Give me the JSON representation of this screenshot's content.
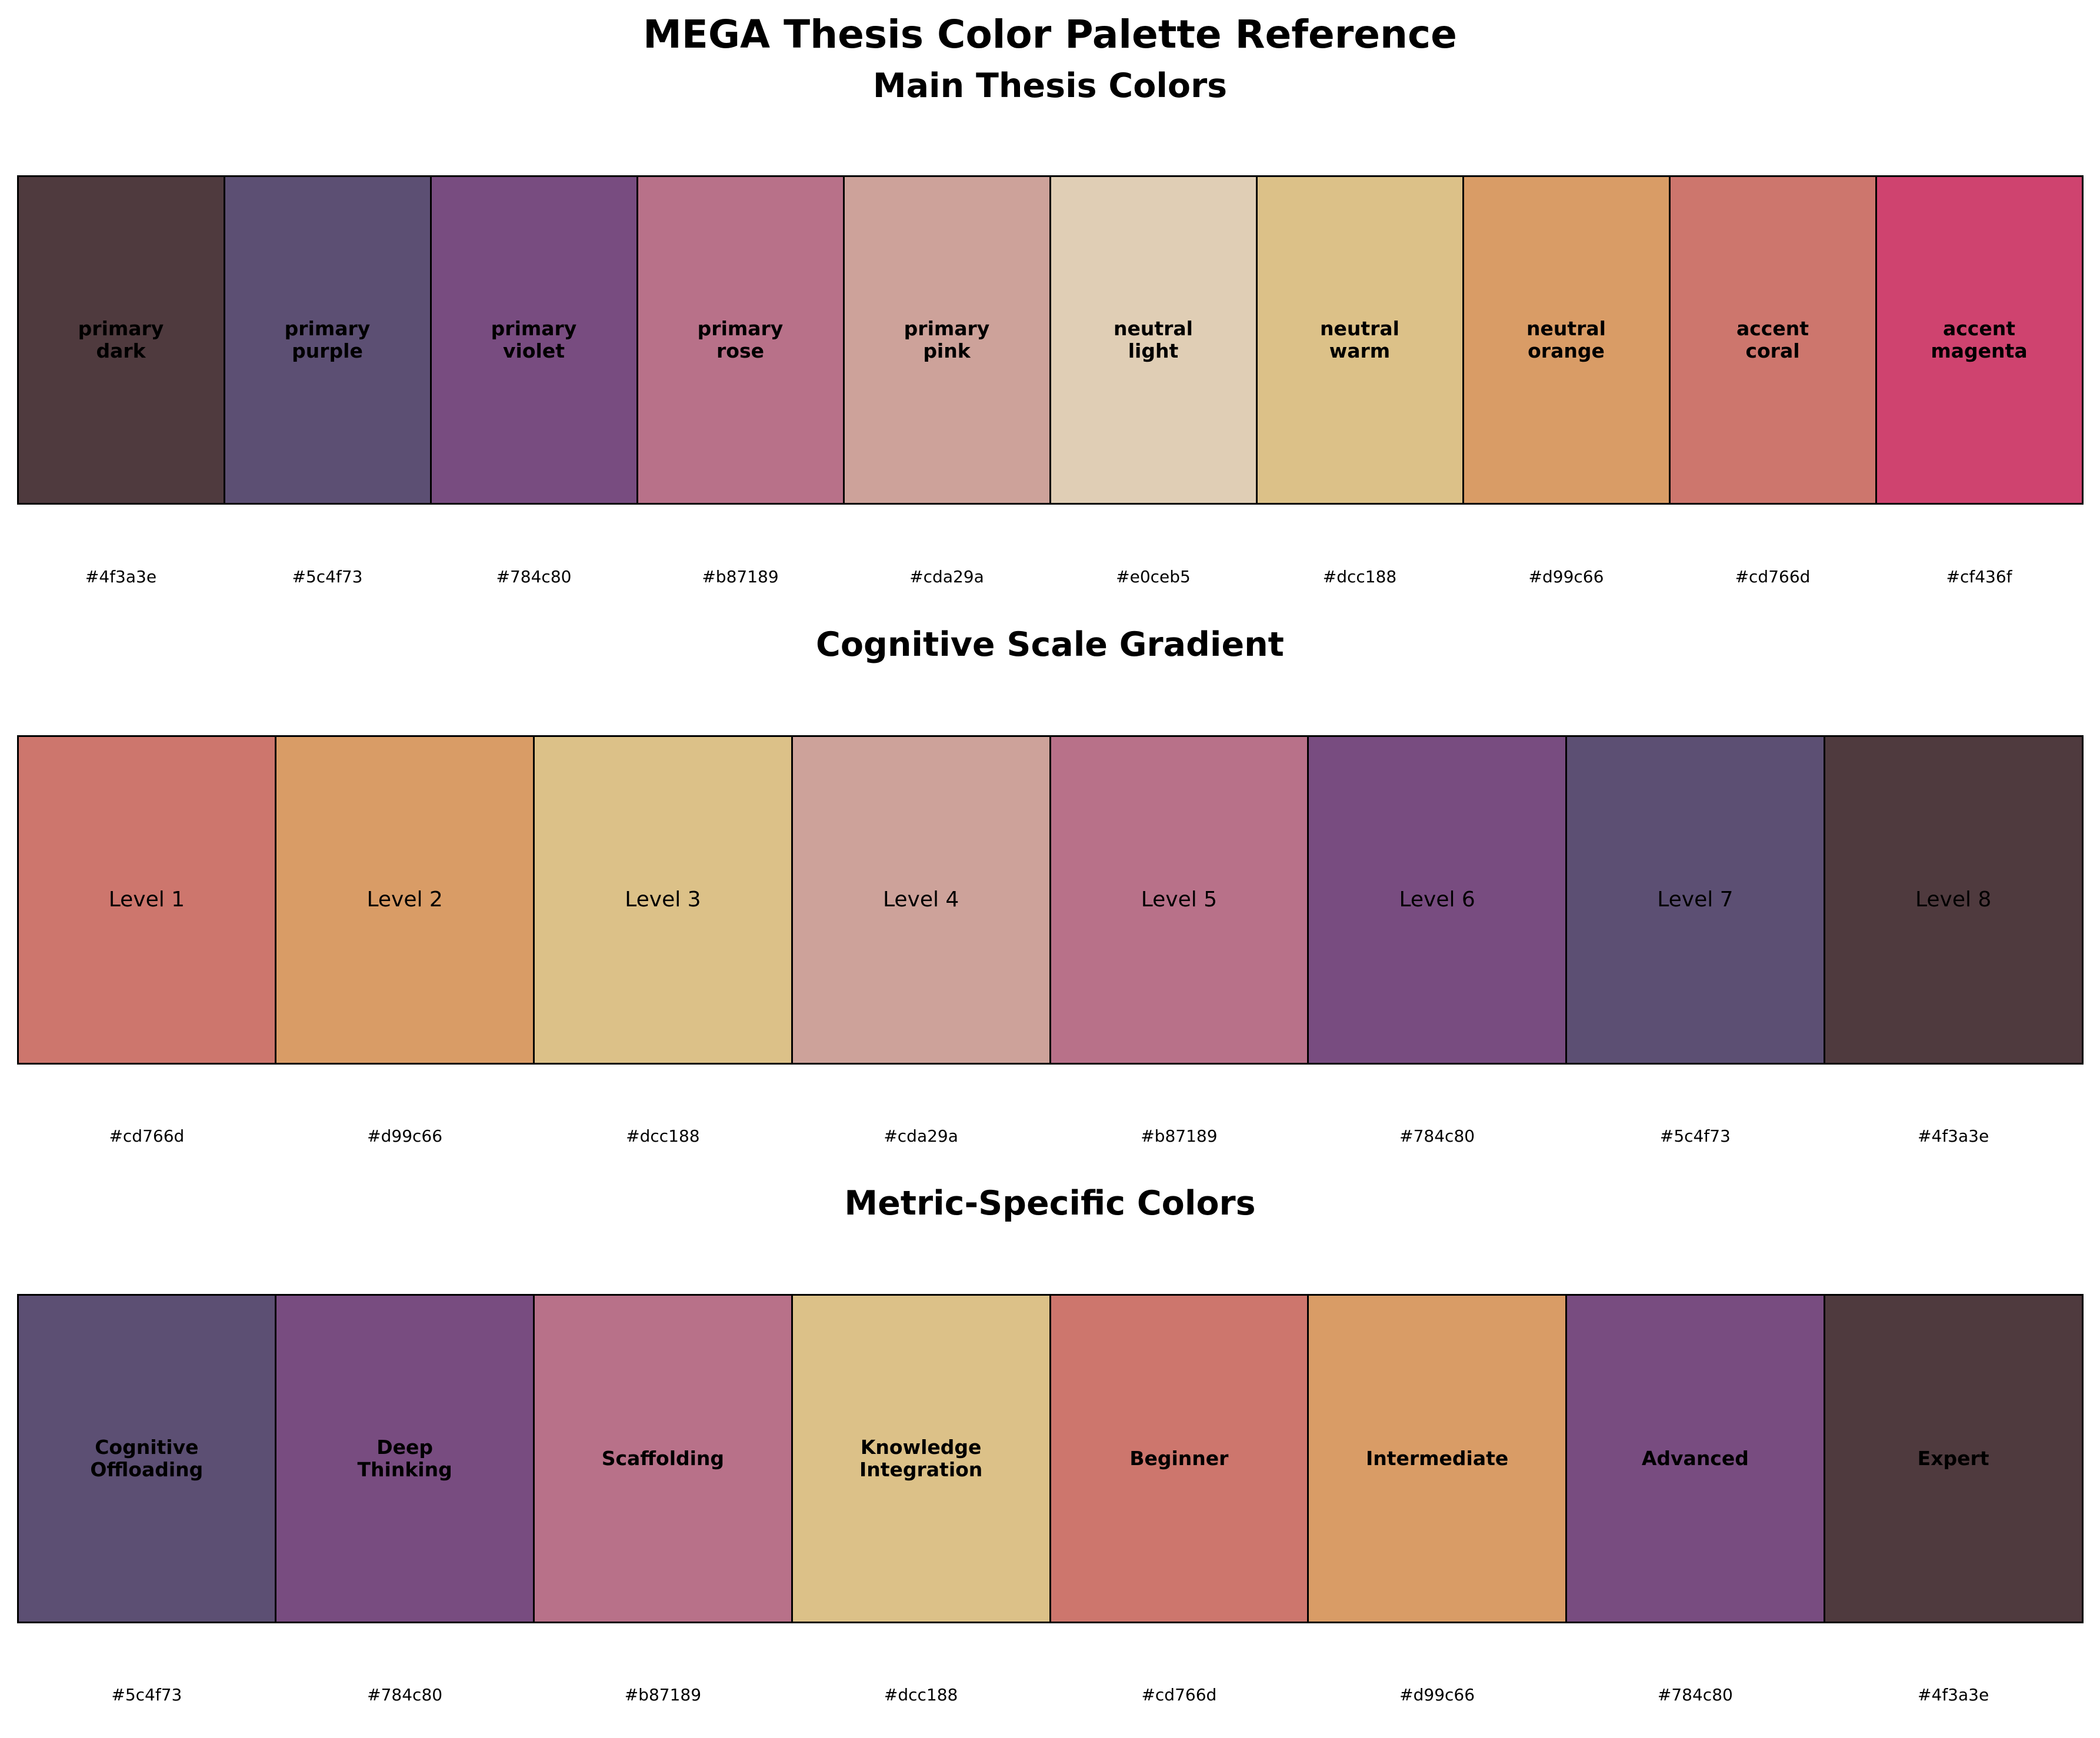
{
  "title": "MEGA Thesis Color Palette Reference",
  "chart_data": [
    {
      "type": "table",
      "title": "Main Thesis Colors",
      "swatches": [
        {
          "label": "primary\ndark",
          "hex": "#4f3a3e",
          "color": "#4f3a3e"
        },
        {
          "label": "primary\npurple",
          "hex": "#5c4f73",
          "color": "#5c4f73"
        },
        {
          "label": "primary\nviolet",
          "hex": "#784c80",
          "color": "#784c80"
        },
        {
          "label": "primary\nrose",
          "hex": "#b87189",
          "color": "#b87189"
        },
        {
          "label": "primary\npink",
          "hex": "#cda29a",
          "color": "#cda29a"
        },
        {
          "label": "neutral\nlight",
          "hex": "#e0ceb5",
          "color": "#e0ceb5"
        },
        {
          "label": "neutral\nwarm",
          "hex": "#dcc188",
          "color": "#dcc188"
        },
        {
          "label": "neutral\norange",
          "hex": "#d99c66",
          "color": "#d99c66"
        },
        {
          "label": "accent\ncoral",
          "hex": "#cd766d",
          "color": "#cd766d"
        },
        {
          "label": "accent\nmagenta",
          "hex": "#cf436f",
          "color": "#cf436f"
        }
      ]
    },
    {
      "type": "table",
      "title": "Cognitive Scale Gradient",
      "swatches": [
        {
          "label": "Level 1",
          "hex": "#cd766d",
          "color": "#cd766d"
        },
        {
          "label": "Level 2",
          "hex": "#d99c66",
          "color": "#d99c66"
        },
        {
          "label": "Level 3",
          "hex": "#dcc188",
          "color": "#dcc188"
        },
        {
          "label": "Level 4",
          "hex": "#cda29a",
          "color": "#cda29a"
        },
        {
          "label": "Level 5",
          "hex": "#b87189",
          "color": "#b87189"
        },
        {
          "label": "Level 6",
          "hex": "#784c80",
          "color": "#784c80"
        },
        {
          "label": "Level 7",
          "hex": "#5c4f73",
          "color": "#5c4f73"
        },
        {
          "label": "Level 8",
          "hex": "#4f3a3e",
          "color": "#4f3a3e"
        }
      ]
    },
    {
      "type": "table",
      "title": "Metric-Specific Colors",
      "swatches": [
        {
          "label": "Cognitive\nOffloading",
          "hex": "#5c4f73",
          "color": "#5c4f73"
        },
        {
          "label": "Deep\nThinking",
          "hex": "#784c80",
          "color": "#784c80"
        },
        {
          "label": "Scaffolding",
          "hex": "#b87189",
          "color": "#b87189"
        },
        {
          "label": "Knowledge\nIntegration",
          "hex": "#dcc188",
          "color": "#dcc188"
        },
        {
          "label": "Beginner",
          "hex": "#cd766d",
          "color": "#cd766d"
        },
        {
          "label": "Intermediate",
          "hex": "#d99c66",
          "color": "#d99c66"
        },
        {
          "label": "Advanced",
          "hex": "#784c80",
          "color": "#784c80"
        },
        {
          "label": "Expert",
          "hex": "#4f3a3e",
          "color": "#4f3a3e"
        }
      ]
    }
  ]
}
